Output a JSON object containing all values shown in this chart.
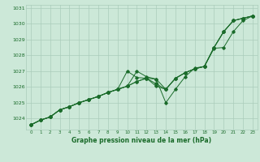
{
  "bg_color": "#cce8d8",
  "grid_color": "#aaccbb",
  "line_color": "#1a6b2a",
  "title": "Graphe pression niveau de la mer (hPa)",
  "xlim": [
    -0.5,
    23.5
  ],
  "ylim": [
    1023.3,
    1031.2
  ],
  "yticks": [
    1024,
    1025,
    1026,
    1027,
    1028,
    1029,
    1030,
    1031
  ],
  "xticks": [
    0,
    1,
    2,
    3,
    4,
    5,
    6,
    7,
    8,
    9,
    10,
    11,
    12,
    13,
    14,
    15,
    16,
    17,
    18,
    19,
    20,
    21,
    22,
    23
  ],
  "series": [
    [
      1023.6,
      1023.9,
      1024.1,
      1024.55,
      1024.75,
      1025.0,
      1025.2,
      1025.4,
      1025.65,
      1025.85,
      1026.05,
      1026.35,
      1026.55,
      1026.2,
      1025.85,
      1026.55,
      1026.9,
      1027.15,
      1027.3,
      1028.5,
      1029.5,
      1030.2,
      1030.35,
      1030.5
    ],
    [
      1023.6,
      1023.9,
      1024.1,
      1024.55,
      1024.75,
      1025.0,
      1025.2,
      1025.4,
      1025.65,
      1025.85,
      1027.0,
      1026.6,
      1026.55,
      1026.05,
      1025.85,
      1026.55,
      1026.9,
      1027.15,
      1027.3,
      1028.5,
      1029.5,
      1030.2,
      1030.35,
      1030.5
    ],
    [
      1023.6,
      1023.9,
      1024.1,
      1024.55,
      1024.75,
      1025.0,
      1025.2,
      1025.4,
      1025.65,
      1025.85,
      1026.05,
      1027.0,
      1026.65,
      1026.5,
      1025.85,
      1026.55,
      1026.9,
      1027.15,
      1027.3,
      1028.5,
      1029.5,
      1030.2,
      1030.35,
      1030.5
    ],
    [
      1023.6,
      1023.9,
      1024.1,
      1024.55,
      1024.75,
      1025.0,
      1025.2,
      1025.4,
      1025.65,
      1025.85,
      1026.05,
      1026.35,
      1026.55,
      1026.5,
      1025.0,
      1025.85,
      1026.65,
      1027.2,
      1027.3,
      1028.45,
      1028.5,
      1029.5,
      1030.2,
      1030.5
    ]
  ]
}
